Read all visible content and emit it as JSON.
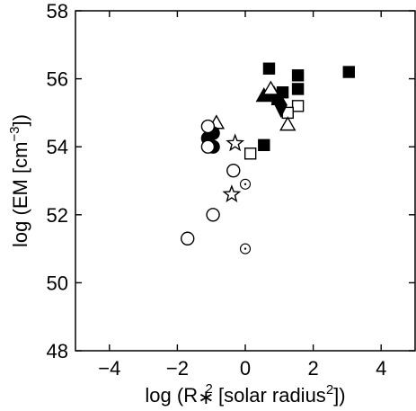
{
  "chart_data": {
    "type": "scatter",
    "xlabel": "log (R∗² [solar radius²])",
    "xlabel_parts": {
      "pre": "log (R",
      "star": "∗",
      "sup": "2",
      "post": " [solar radius",
      "post_sup": "2",
      "end": "])"
    },
    "ylabel": "log (EM [cm⁻³])",
    "ylabel_parts": {
      "pre": "log (EM [cm",
      "sup": "−3",
      "end": "])"
    },
    "xlim": [
      -5,
      5
    ],
    "ylim": [
      48,
      58
    ],
    "xticks": [
      -4,
      -2,
      0,
      2,
      4
    ],
    "yticks": [
      48,
      50,
      52,
      54,
      56,
      58
    ],
    "xtick_labels": [
      "−4",
      "−2",
      "0",
      "2",
      "4"
    ],
    "ytick_labels": [
      "48",
      "50",
      "52",
      "54",
      "56",
      "58"
    ],
    "grid": false,
    "legend": "none",
    "points": [
      {
        "marker": "square-filled",
        "x": 3.05,
        "y": 56.2
      },
      {
        "marker": "square-filled",
        "x": 1.55,
        "y": 56.1
      },
      {
        "marker": "square-filled",
        "x": 1.55,
        "y": 55.7
      },
      {
        "marker": "square-filled",
        "x": 0.7,
        "y": 56.3
      },
      {
        "marker": "square-filled",
        "x": 1.1,
        "y": 55.6
      },
      {
        "marker": "square-filled",
        "x": 0.95,
        "y": 55.4
      },
      {
        "marker": "square-filled",
        "x": 0.55,
        "y": 54.05
      },
      {
        "marker": "square-open",
        "x": 1.55,
        "y": 55.2
      },
      {
        "marker": "square-open",
        "x": 1.25,
        "y": 55.0
      },
      {
        "marker": "square-open",
        "x": 0.15,
        "y": 53.8
      },
      {
        "marker": "triangle-filled",
        "x": 0.55,
        "y": 55.5
      },
      {
        "marker": "triangle-filled",
        "x": 0.85,
        "y": 55.55
      },
      {
        "marker": "triangle-filled",
        "x": 1.0,
        "y": 55.4
      },
      {
        "marker": "triangle-open",
        "x": 0.75,
        "y": 55.7
      },
      {
        "marker": "triangle-open",
        "x": 1.25,
        "y": 54.65
      },
      {
        "marker": "triangle-open",
        "x": -0.85,
        "y": 54.7
      },
      {
        "marker": "diamond-filled",
        "x": 1.05,
        "y": 55.1
      },
      {
        "marker": "circle-filled",
        "x": -0.95,
        "y": 54.4
      },
      {
        "marker": "circle-filled",
        "x": -1.1,
        "y": 54.25
      },
      {
        "marker": "circle-filled",
        "x": -0.95,
        "y": 54.0
      },
      {
        "marker": "circle-open",
        "x": -1.1,
        "y": 54.6
      },
      {
        "marker": "circle-open",
        "x": -1.1,
        "y": 54.0
      },
      {
        "marker": "circle-open",
        "x": -0.35,
        "y": 53.3
      },
      {
        "marker": "circle-open",
        "x": -0.95,
        "y": 52.0
      },
      {
        "marker": "circle-open",
        "x": -1.7,
        "y": 51.3
      },
      {
        "marker": "star-open",
        "x": -0.3,
        "y": 54.1
      },
      {
        "marker": "star-open",
        "x": -0.4,
        "y": 52.6
      },
      {
        "marker": "circle-dot",
        "x": 0.0,
        "y": 52.9
      },
      {
        "marker": "circle-dot",
        "x": 0.0,
        "y": 51.0
      }
    ]
  }
}
